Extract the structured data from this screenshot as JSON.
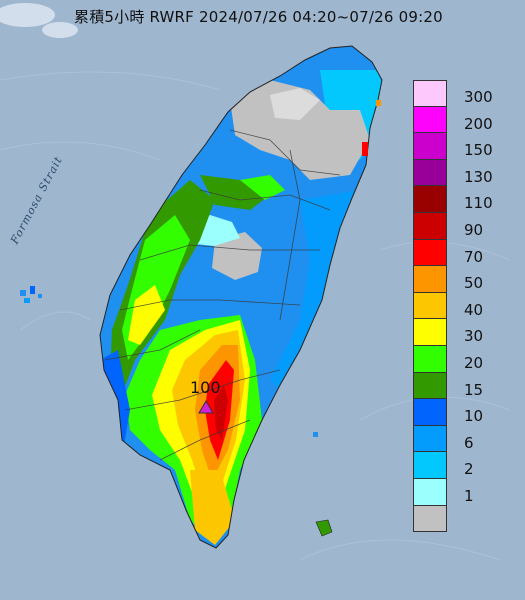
{
  "title": "累積5小時 RWRF 2024/07/26 04:20~07/26 09:20",
  "strait_label": "Formosa Strait",
  "max_value": "100",
  "legend": {
    "labels": [
      "300",
      "200",
      "150",
      "130",
      "110",
      "90",
      "70",
      "50",
      "40",
      "30",
      "20",
      "15",
      "10",
      "6",
      "2",
      "1"
    ],
    "colors": [
      "#fdc9fc",
      "#fd03fb",
      "#cc00cc",
      "#990099",
      "#990000",
      "#cc0000",
      "#fe0000",
      "#fd9500",
      "#fdc700",
      "#fefe00",
      "#33fe00",
      "#339900",
      "#0165fd",
      "#039cfd",
      "#02c8fe",
      "#9bfffe",
      "#c1c1c1"
    ]
  },
  "colors": {
    "sea": "#9fb6cf",
    "land_base": "#1f8ff0",
    "dry": "#c1c1c1",
    "marker": "#d020d8"
  }
}
